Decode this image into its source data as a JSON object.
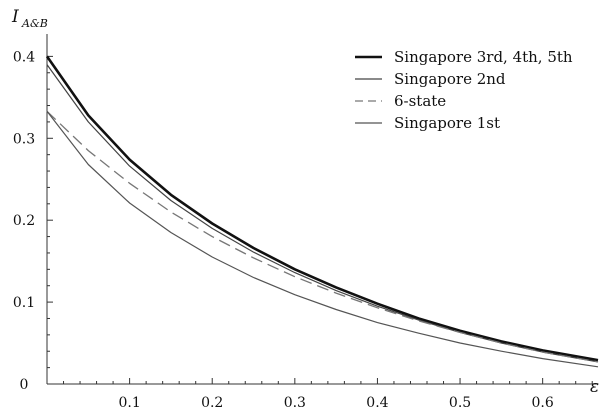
{
  "chart_data": {
    "type": "line",
    "title": "",
    "xlabel": "ε",
    "ylabel": {
      "main": "I",
      "subscript": "A&B"
    },
    "xlim": [
      0,
      0.667
    ],
    "ylim": [
      0,
      0.42
    ],
    "x_ticks": [
      0.1,
      0.2,
      0.3,
      0.4,
      0.5,
      0.6
    ],
    "x_tick_labels": [
      "0.1",
      "0.2",
      "0.3",
      "0.4",
      "0.5",
      "0.6"
    ],
    "y_ticks": [
      0,
      0.1,
      0.2,
      0.3,
      0.4
    ],
    "y_tick_labels": [
      "0",
      "0.1",
      "0.2",
      "0.3",
      "0.4"
    ],
    "grid": false,
    "legend_position": "top-right",
    "x": [
      0,
      0.05,
      0.1,
      0.15,
      0.2,
      0.25,
      0.3,
      0.35,
      0.4,
      0.45,
      0.5,
      0.55,
      0.6,
      0.667
    ],
    "series": [
      {
        "name": "Singapore 3rd, 4th, 5th",
        "style": "thick",
        "color": "#111111",
        "values": [
          0.4,
          0.328,
          0.274,
          0.231,
          0.196,
          0.166,
          0.14,
          0.118,
          0.098,
          0.08,
          0.065,
          0.052,
          0.041,
          0.029
        ]
      },
      {
        "name": "Singapore 2nd",
        "style": "thin",
        "color": "#444444",
        "values": [
          0.39,
          0.32,
          0.266,
          0.224,
          0.19,
          0.161,
          0.136,
          0.114,
          0.095,
          0.078,
          0.063,
          0.05,
          0.039,
          0.027
        ]
      },
      {
        "name": "6-state",
        "style": "dashed",
        "color": "#777777",
        "values": [
          0.333,
          0.285,
          0.245,
          0.21,
          0.18,
          0.154,
          0.131,
          0.111,
          0.093,
          0.077,
          0.063,
          0.05,
          0.039,
          0.027
        ]
      },
      {
        "name": "Singapore 1st",
        "style": "thin",
        "color": "#555555",
        "values": [
          0.333,
          0.268,
          0.221,
          0.185,
          0.155,
          0.13,
          0.109,
          0.091,
          0.075,
          0.062,
          0.05,
          0.04,
          0.031,
          0.021
        ]
      }
    ]
  }
}
